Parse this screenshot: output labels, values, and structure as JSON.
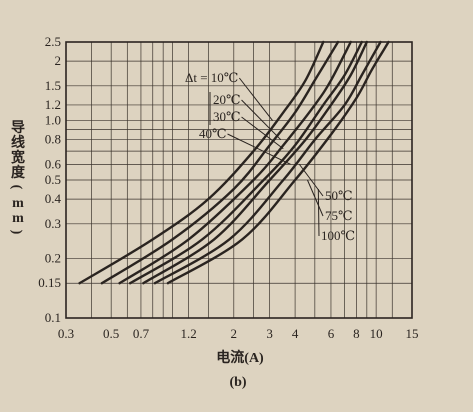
{
  "chart_data": {
    "type": "line",
    "xlabel": "电流(A)",
    "ylabel": "导线宽度(mm)",
    "caption": "(b)",
    "x_scale": "log",
    "y_scale": "log",
    "xlim": [
      0.3,
      15
    ],
    "ylim": [
      0.1,
      2.5
    ],
    "grid": true,
    "x_ticks": [
      {
        "value": 0.3,
        "label": "0.3"
      },
      {
        "value": 0.5,
        "label": "0.5"
      },
      {
        "value": 0.7,
        "label": "0.7"
      },
      {
        "value": 1.2,
        "label": "1.2"
      },
      {
        "value": 2,
        "label": "2"
      },
      {
        "value": 3,
        "label": "3"
      },
      {
        "value": 4,
        "label": "4"
      },
      {
        "value": 6,
        "label": "6"
      },
      {
        "value": 8,
        "label": "8"
      },
      {
        "value": 10,
        "label": "10"
      },
      {
        "value": 15,
        "label": "15"
      }
    ],
    "x_gridlines": [
      0.4,
      0.5,
      0.6,
      0.7,
      0.8,
      0.9,
      1,
      1.2,
      1.5,
      2,
      2.5,
      3,
      4,
      5,
      6,
      7,
      8,
      9,
      10,
      12,
      15
    ],
    "y_ticks": [
      {
        "value": 0.1,
        "label": "0.1"
      },
      {
        "value": 0.15,
        "label": "0.15"
      },
      {
        "value": 0.2,
        "label": "0.2"
      },
      {
        "value": 0.3,
        "label": "0.3"
      },
      {
        "value": 0.4,
        "label": "0.4"
      },
      {
        "value": 0.5,
        "label": "0.5"
      },
      {
        "value": 0.6,
        "label": "0.6"
      },
      {
        "value": 0.8,
        "label": "0.8"
      },
      {
        "value": 1.0,
        "label": "1.0"
      },
      {
        "value": 1.2,
        "label": "1.2"
      },
      {
        "value": 1.5,
        "label": "1.5"
      },
      {
        "value": 2.0,
        "label": "2"
      },
      {
        "value": 2.5,
        "label": "2.5"
      }
    ],
    "y_gridlines": [
      0.15,
      0.2,
      0.3,
      0.4,
      0.5,
      0.6,
      0.7,
      0.8,
      0.9,
      1.0,
      1.2,
      1.5,
      2.0
    ],
    "series": [
      {
        "name": "Δt = 10℃",
        "points": [
          [
            0.35,
            0.15
          ],
          [
            0.8,
            0.25
          ],
          [
            1.5,
            0.4
          ],
          [
            2.5,
            0.7
          ],
          [
            3.5,
            1.1
          ],
          [
            4.5,
            1.6
          ],
          [
            5.5,
            2.5
          ]
        ]
      },
      {
        "name": "20℃",
        "points": [
          [
            0.45,
            0.15
          ],
          [
            1.0,
            0.25
          ],
          [
            2.0,
            0.45
          ],
          [
            3.0,
            0.75
          ],
          [
            4.0,
            1.1
          ],
          [
            5.0,
            1.6
          ],
          [
            6.5,
            2.5
          ]
        ]
      },
      {
        "name": "30℃",
        "points": [
          [
            0.55,
            0.15
          ],
          [
            1.2,
            0.25
          ],
          [
            2.5,
            0.5
          ],
          [
            3.5,
            0.75
          ],
          [
            5.0,
            1.2
          ],
          [
            6.0,
            1.6
          ],
          [
            7.5,
            2.5
          ]
        ]
      },
      {
        "name": "40℃",
        "points": [
          [
            0.62,
            0.15
          ],
          [
            1.4,
            0.25
          ],
          [
            2.8,
            0.5
          ],
          [
            4.0,
            0.75
          ],
          [
            5.5,
            1.2
          ],
          [
            7.0,
            1.7
          ],
          [
            8.5,
            2.5
          ]
        ]
      },
      {
        "name": "50℃",
        "points": [
          [
            0.72,
            0.15
          ],
          [
            1.6,
            0.25
          ],
          [
            3.0,
            0.5
          ],
          [
            4.5,
            0.8
          ],
          [
            6.0,
            1.2
          ],
          [
            7.5,
            1.7
          ],
          [
            9.0,
            2.5
          ]
        ]
      },
      {
        "name": "75℃",
        "points": [
          [
            0.82,
            0.15
          ],
          [
            1.9,
            0.25
          ],
          [
            3.5,
            0.5
          ],
          [
            5.0,
            0.8
          ],
          [
            7.0,
            1.2
          ],
          [
            8.5,
            1.7
          ],
          [
            10.5,
            2.5
          ]
        ]
      },
      {
        "name": "100℃",
        "points": [
          [
            0.95,
            0.15
          ],
          [
            2.2,
            0.25
          ],
          [
            4.0,
            0.5
          ],
          [
            6.0,
            0.85
          ],
          [
            8.0,
            1.3
          ],
          [
            9.5,
            1.8
          ],
          [
            11.5,
            2.5
          ]
        ]
      }
    ],
    "annotations": [
      {
        "text": "Δt = 10℃",
        "at_x": 3.1,
        "at_y": 1.0
      },
      {
        "text": "20℃",
        "at_x": 3.4,
        "at_y": 0.8
      },
      {
        "text": "30℃",
        "at_x": 3.5,
        "at_y": 0.72
      },
      {
        "text": "40℃",
        "at_x": 3.8,
        "at_y": 0.6
      },
      {
        "text": "50℃",
        "at_x": 4.2,
        "at_y": 0.6
      },
      {
        "text": "75℃",
        "at_x": 4.6,
        "at_y": 0.5
      },
      {
        "text": "100℃",
        "at_x": 5.2,
        "at_y": 0.45
      }
    ]
  }
}
